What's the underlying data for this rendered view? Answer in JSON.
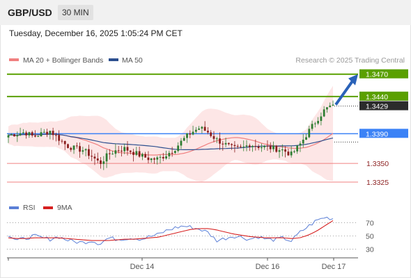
{
  "header": {
    "pair": "GBP/USD",
    "timeframe": "30 MIN"
  },
  "datetime": "Tuesday, December 16, 2025 1:05:24 PM CET",
  "legend": {
    "ma20": "MA 20 + Bollinger Bands",
    "ma50": "MA 50",
    "credit": "Research © 2025 Trading Central",
    "rsi": "RSI",
    "ma9": "9MA"
  },
  "colors": {
    "ma20": "#f08080",
    "ma50": "#2c4f8f",
    "support": "#3b82f6",
    "target": "#5aa000",
    "bull": "#2e7d32",
    "bear": "#8b1e1e",
    "band": "#fde2e2",
    "rsi": "#5b7fd6",
    "ma9": "#d62020",
    "arrow": "#2a62b8"
  },
  "chart_data": [
    {
      "type": "candlestick",
      "title": "GBP/USD 30 MIN",
      "ylim": [
        1.331,
        1.348
      ],
      "x_ticks": [
        "Dec 14",
        "Dec 16",
        "Dec 17"
      ],
      "current_price": "1.3429",
      "levels": [
        {
          "label": "1.3470",
          "value": 1.347,
          "kind": "target"
        },
        {
          "label": "1.3440",
          "value": 1.344,
          "kind": "target"
        },
        {
          "label": "1.3390",
          "value": 1.339,
          "kind": "pivot"
        },
        {
          "label": "1.3350",
          "value": 1.335,
          "kind": "support"
        },
        {
          "label": "1.3325",
          "value": 1.3325,
          "kind": "support"
        }
      ],
      "approx_path": [
        1.3388,
        1.339,
        1.3392,
        1.3386,
        1.339,
        1.3394,
        1.3384,
        1.3374,
        1.337,
        1.3368,
        1.336,
        1.335,
        1.3362,
        1.3368,
        1.337,
        1.3365,
        1.336,
        1.3356,
        1.3356,
        1.3362,
        1.337,
        1.3382,
        1.3392,
        1.3398,
        1.3392,
        1.3382,
        1.3376,
        1.337,
        1.337,
        1.3376,
        1.3373,
        1.3372,
        1.337,
        1.3368,
        1.3362,
        1.3375,
        1.3392,
        1.3408,
        1.3422,
        1.3429
      ]
    },
    {
      "type": "line",
      "title": "RSI",
      "ylim": [
        20,
        85
      ],
      "y_ticks": [
        "70",
        "50",
        "30"
      ],
      "series": [
        {
          "name": "RSI",
          "values": [
            52,
            43,
            46,
            50,
            47,
            45,
            49,
            44,
            41,
            40,
            43,
            38,
            47,
            45,
            46,
            47,
            45,
            49,
            52,
            58,
            62,
            65,
            63,
            60,
            55,
            43,
            46,
            50,
            48,
            45,
            49,
            45,
            44,
            47,
            42,
            55,
            64,
            73,
            78,
            76
          ]
        },
        {
          "name": "9MA",
          "values": [
            47,
            46,
            46,
            47,
            47,
            47,
            47,
            46,
            45,
            44,
            43,
            43,
            43,
            44,
            45,
            45,
            46,
            47,
            48,
            51,
            54,
            57,
            60,
            61,
            61,
            59,
            56,
            53,
            51,
            49,
            48,
            47,
            47,
            47,
            46,
            47,
            51,
            57,
            65,
            73
          ]
        }
      ]
    }
  ]
}
